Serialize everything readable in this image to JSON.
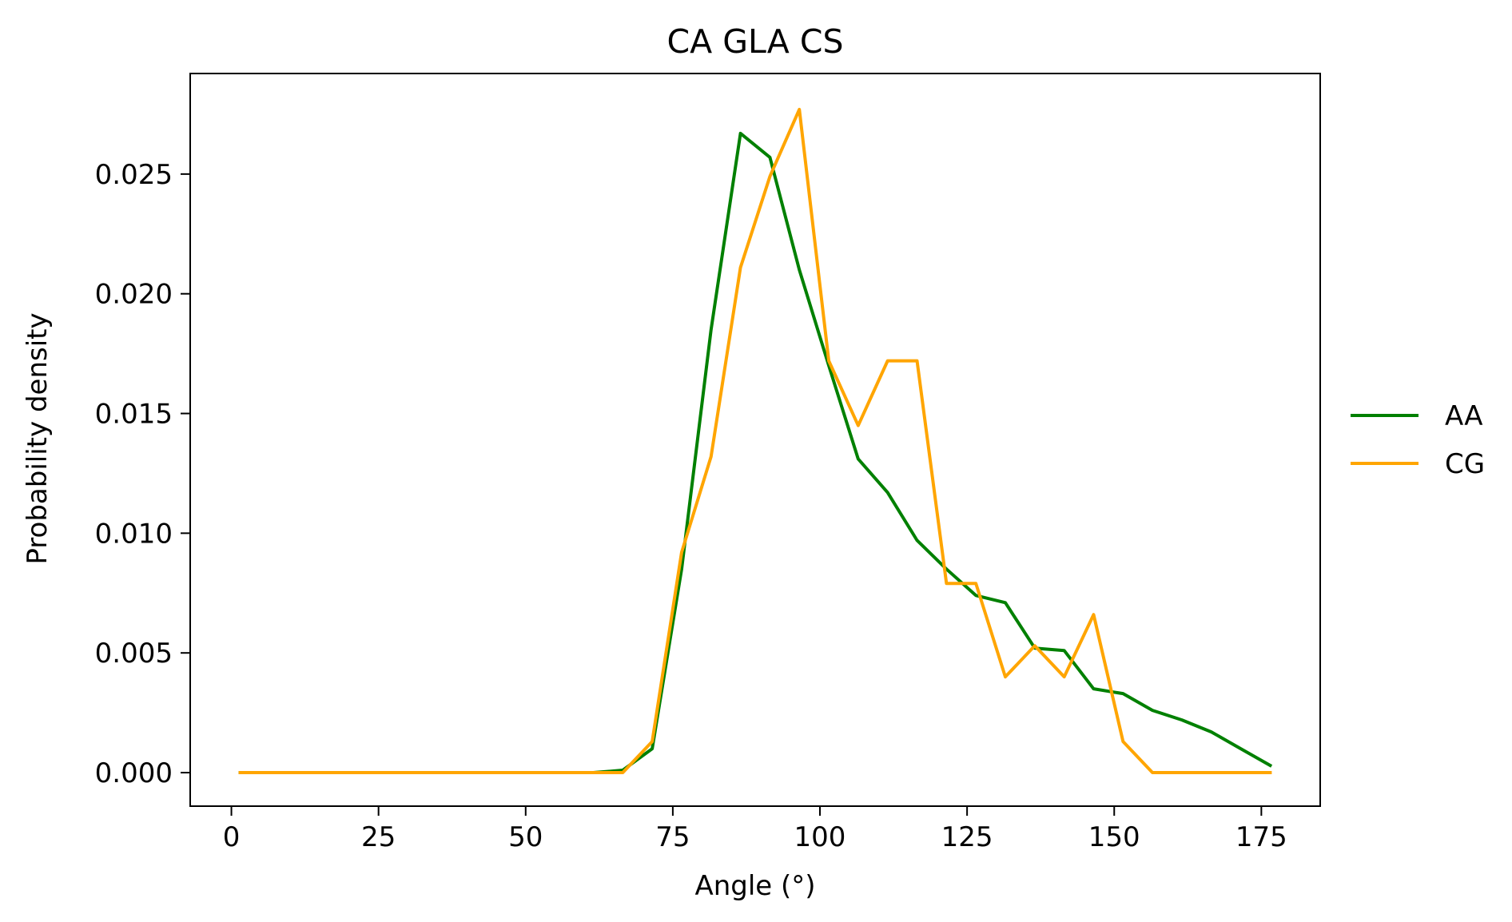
{
  "chart_data": {
    "type": "line",
    "title": "CA GLA CS",
    "xlabel": "Angle (°)",
    "ylabel": "Probability density",
    "xlim": [
      -7,
      185
    ],
    "ylim": [
      -0.0014,
      0.0292
    ],
    "xticks": [
      0,
      25,
      50,
      75,
      100,
      125,
      150,
      175
    ],
    "yticks": [
      0.0,
      0.005,
      0.01,
      0.015,
      0.02,
      0.025
    ],
    "ytick_labels": [
      "0.000",
      "0.005",
      "0.010",
      "0.015",
      "0.020",
      "0.025"
    ],
    "grid": false,
    "legend": {
      "placement": "outside-right",
      "entries": [
        "AA",
        "CG"
      ]
    },
    "series": [
      {
        "name": "AA",
        "color": "#008000",
        "x": [
          1.5,
          6.5,
          11.5,
          16.5,
          21.5,
          26.5,
          31.5,
          36.5,
          41.5,
          46.5,
          51.5,
          56.5,
          61.5,
          66.5,
          71.5,
          76.5,
          81.5,
          86.5,
          91.5,
          96.5,
          101.5,
          106.5,
          111.5,
          116.5,
          121.5,
          126.5,
          131.5,
          136.5,
          141.5,
          146.5,
          151.5,
          156.5,
          161.5,
          166.5,
          171.5,
          176.5
        ],
        "y": [
          0.0,
          0.0,
          0.0,
          0.0,
          0.0,
          0.0,
          0.0,
          0.0,
          0.0,
          0.0,
          0.0,
          0.0,
          0.0,
          0.0001,
          0.001,
          0.0085,
          0.0185,
          0.0267,
          0.0257,
          0.021,
          0.017,
          0.0131,
          0.0117,
          0.0097,
          0.0085,
          0.0074,
          0.0071,
          0.0052,
          0.0051,
          0.0035,
          0.0033,
          0.0026,
          0.0022,
          0.0017,
          0.001,
          0.0003
        ]
      },
      {
        "name": "CG",
        "color": "#ffa500",
        "x": [
          1.5,
          6.5,
          11.5,
          16.5,
          21.5,
          26.5,
          31.5,
          36.5,
          41.5,
          46.5,
          51.5,
          56.5,
          61.5,
          66.5,
          71.5,
          76.5,
          81.5,
          86.5,
          91.5,
          96.5,
          101.5,
          106.5,
          111.5,
          116.5,
          121.5,
          126.5,
          131.5,
          136.5,
          141.5,
          146.5,
          151.5,
          156.5,
          161.5,
          166.5,
          171.5,
          176.5
        ],
        "y": [
          0.0,
          0.0,
          0.0,
          0.0,
          0.0,
          0.0,
          0.0,
          0.0,
          0.0,
          0.0,
          0.0,
          0.0,
          0.0,
          0.0,
          0.0013,
          0.0092,
          0.0132,
          0.0211,
          0.0249,
          0.0277,
          0.0172,
          0.0145,
          0.0172,
          0.0172,
          0.0079,
          0.0079,
          0.004,
          0.0053,
          0.004,
          0.0066,
          0.0013,
          0.0,
          0.0,
          0.0,
          0.0,
          0.0
        ]
      }
    ]
  }
}
